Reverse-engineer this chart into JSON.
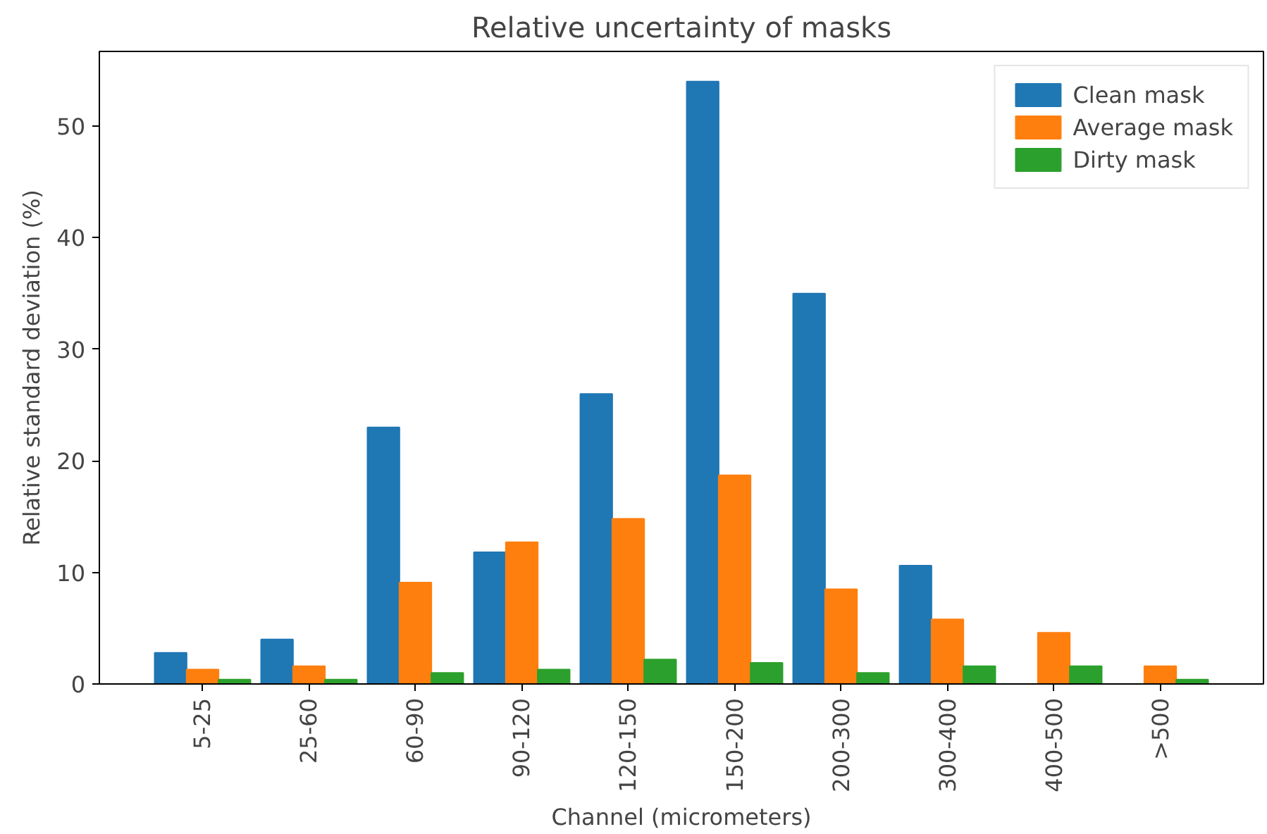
{
  "chart_data": {
    "type": "bar",
    "title": "Relative uncertainty of masks",
    "xlabel": "Channel (micrometers)",
    "ylabel": "Relative standard deviation (%)",
    "categories": [
      "5-25",
      "25-60",
      "60-90",
      "90-120",
      "120-150",
      "150-200",
      "200-300",
      "300-400",
      "400-500",
      ">500"
    ],
    "series": [
      {
        "name": "Clean mask",
        "color": "#1f77b4",
        "values": [
          2.8,
          4.0,
          23.0,
          11.8,
          26.0,
          54.0,
          35.0,
          10.6,
          0,
          0
        ]
      },
      {
        "name": "Average mask",
        "color": "#ff7f0e",
        "values": [
          1.3,
          1.6,
          9.1,
          12.7,
          14.8,
          18.7,
          8.5,
          5.8,
          4.6,
          1.6
        ]
      },
      {
        "name": "Dirty mask",
        "color": "#2ca02c",
        "values": [
          0.4,
          0.4,
          1.0,
          1.3,
          2.2,
          1.9,
          1.0,
          1.6,
          1.6,
          0.4
        ]
      }
    ],
    "ylim": [
      0,
      56.7
    ],
    "yticks": [
      0,
      10,
      20,
      30,
      40,
      50
    ],
    "grid": false,
    "legend": "top right"
  }
}
